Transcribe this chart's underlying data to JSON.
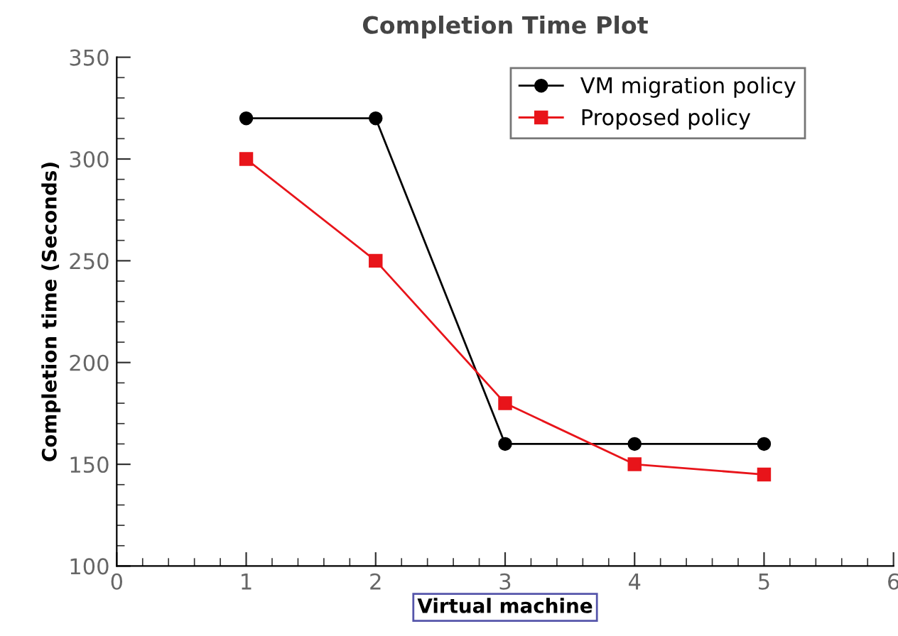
{
  "chart_data": {
    "type": "line",
    "title": "Completion Time Plot",
    "xlabel": "Virtual machine",
    "ylabel": "Completion time (Seconds)",
    "x": [
      1,
      2,
      3,
      4,
      5
    ],
    "series": [
      {
        "name": "VM migration policy",
        "color": "#000000",
        "values": [
          320,
          320,
          160,
          160,
          160
        ],
        "marker": "circle"
      },
      {
        "name": "Proposed policy",
        "color": "#e8141a",
        "values": [
          300,
          250,
          180,
          150,
          145
        ],
        "marker": "square"
      }
    ],
    "xlim": [
      0,
      6
    ],
    "xticks": [
      0,
      1,
      2,
      3,
      4,
      5,
      6
    ],
    "ylim": [
      100,
      350
    ],
    "yticks": [
      100,
      150,
      200,
      250,
      300,
      350
    ],
    "grid": false,
    "legend": "top right",
    "line_style": "solid"
  }
}
